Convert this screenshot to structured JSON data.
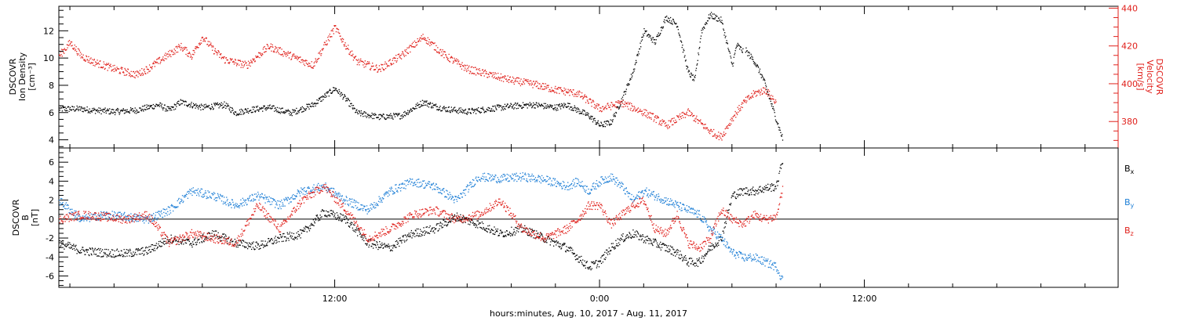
{
  "chart_data": [
    {
      "type": "scatter",
      "panel": "top",
      "x_units": "hours since 2017-08-10 00:00 UT",
      "xlim": [
        -0.5,
        47.5
      ],
      "x_ticks": [
        {
          "value": 12,
          "label": "12:00"
        },
        {
          "value": 24,
          "label": "0:00"
        },
        {
          "value": 36,
          "label": "12:00"
        }
      ],
      "xlabel": "hours:minutes, Aug. 10, 2017 - Aug. 11, 2017",
      "left_axis": {
        "label_lines": [
          "DSCOVR",
          "Ion Density",
          "[cm⁻³]"
        ],
        "ylim": [
          3.4,
          13.8
        ],
        "ticks": [
          4,
          6,
          8,
          10,
          12
        ],
        "color": "#000000"
      },
      "right_axis": {
        "label_lines": [
          "DSCOVR",
          "Velocity",
          "[km/s]"
        ],
        "ylim": [
          366,
          441
        ],
        "ticks": [
          380,
          400,
          420,
          440
        ],
        "color": "#e0201b"
      },
      "series": [
        {
          "axis": "left",
          "color": "#000000",
          "x": [
            -0.5,
            0.5,
            1.0,
            2.0,
            3.0,
            4.0,
            4.5,
            5.0,
            6.0,
            7.0,
            7.5,
            8.0,
            9.0,
            10.0,
            11.0,
            11.5,
            12.0,
            12.5,
            13.0,
            14.0,
            15.0,
            16.0,
            16.5,
            17.0,
            18.0,
            19.0,
            20.0,
            21.0,
            22.0,
            22.5,
            23.0,
            23.5,
            24.0,
            24.5,
            25.0,
            25.5,
            26.0,
            26.5,
            27.0,
            27.5,
            28.0,
            28.3,
            28.6,
            29.0,
            29.5,
            30.0,
            30.2,
            30.5
          ],
          "y": [
            6.3,
            6.3,
            6.2,
            6.1,
            6.2,
            6.6,
            6.2,
            6.8,
            6.4,
            6.6,
            6.0,
            6.2,
            6.4,
            6.0,
            6.6,
            7.2,
            7.8,
            7.0,
            6.0,
            5.7,
            5.8,
            6.8,
            6.5,
            6.3,
            6.1,
            6.3,
            6.5,
            6.6,
            6.4,
            6.6,
            6.2,
            5.8,
            5.1,
            5.3,
            7.0,
            9.0,
            12.0,
            11.2,
            13.0,
            12.5,
            9.0,
            8.4,
            12.0,
            13.2,
            12.8,
            9.5,
            11.0,
            10.5
          ]
        },
        {
          "axis": "left",
          "color": "#000000",
          "x": [
            30.6,
            31.0,
            31.4,
            31.8,
            32.0,
            32.3
          ],
          "y": [
            10.6,
            9.8,
            8.5,
            6.5,
            5.5,
            4.0
          ]
        },
        {
          "axis": "right",
          "color": "#e0201b",
          "x": [
            -0.5,
            0.0,
            0.5,
            1.0,
            2.0,
            3.0,
            3.5,
            4.0,
            5.0,
            5.5,
            6.0,
            6.5,
            7.0,
            8.0,
            9.0,
            10.0,
            11.0,
            12.0,
            12.5,
            13.0,
            14.0,
            15.0,
            16.0,
            17.0,
            18.0,
            19.0,
            20.0,
            21.0,
            22.0,
            23.0,
            24.0,
            25.0,
            26.0,
            26.5,
            27.0,
            28.0,
            29.0,
            29.5,
            30.0,
            30.5,
            31.0,
            31.5,
            32.0
          ],
          "y": [
            415,
            422,
            415,
            412,
            408,
            405,
            408,
            412,
            420,
            415,
            425,
            418,
            413,
            410,
            420,
            415,
            410,
            430,
            420,
            412,
            408,
            415,
            425,
            415,
            408,
            405,
            402,
            400,
            397,
            395,
            387,
            390,
            385,
            382,
            378,
            385,
            375,
            372,
            382,
            390,
            395,
            397,
            390
          ]
        }
      ]
    },
    {
      "type": "scatter",
      "panel": "bottom",
      "x_units": "hours since 2017-08-10 00:00 UT",
      "xlim": [
        -0.5,
        47.5
      ],
      "x_ticks": [
        {
          "value": 12,
          "label": "12:00"
        },
        {
          "value": 24,
          "label": "0:00"
        },
        {
          "value": 36,
          "label": "12:00"
        }
      ],
      "xlabel": "hours:minutes, Aug. 10, 2017 - Aug. 11, 2017",
      "left_axis": {
        "label_lines": [
          "DSCOVR",
          "B",
          "[nT]"
        ],
        "ylim": [
          -7.2,
          7.5
        ],
        "ticks": [
          -6,
          -4,
          -2,
          0,
          2,
          4,
          6
        ],
        "color": "#000000"
      },
      "zero_line": true,
      "series": [
        {
          "name": "Bx",
          "color": "#000000",
          "x": [
            -0.5,
            0.5,
            1.5,
            2.5,
            3.5,
            4.5,
            5.5,
            6.5,
            7.5,
            8.5,
            9.5,
            10.5,
            11.5,
            12.5,
            13.5,
            14.5,
            15.5,
            16.5,
            17.5,
            18.5,
            19.5,
            20.5,
            21.5,
            22.5,
            23.0,
            23.5,
            24.0,
            24.5,
            25.0,
            25.5,
            26.0,
            26.5,
            27.0,
            27.5,
            28.0,
            28.5,
            29.0,
            29.5,
            30.0,
            30.5,
            31.0,
            31.5,
            32.0,
            32.3
          ],
          "y": [
            -2.5,
            -3.3,
            -3.5,
            -3.6,
            -3.3,
            -2.0,
            -2.5,
            -1.5,
            -2.5,
            -2.8,
            -2.0,
            -1.5,
            0.8,
            0.0,
            -2.5,
            -3.0,
            -1.5,
            -1.0,
            0.3,
            -0.5,
            -1.5,
            -1.0,
            -2.0,
            -3.0,
            -4.0,
            -5.0,
            -4.5,
            -3.0,
            -2.0,
            -1.5,
            -2.0,
            -2.5,
            -3.0,
            -3.5,
            -4.5,
            -4.5,
            -3.0,
            -2.0,
            2.5,
            3.0,
            3.0,
            3.3,
            3.5,
            6.5
          ]
        },
        {
          "name": "By",
          "color": "#1e7fd6",
          "x": [
            -0.5,
            0.5,
            1.5,
            2.5,
            3.5,
            4.5,
            5.5,
            6.5,
            7.5,
            8.5,
            9.5,
            10.5,
            11.5,
            12.5,
            13.5,
            14.5,
            15.5,
            16.5,
            17.5,
            18.5,
            19.5,
            20.5,
            21.5,
            22.5,
            23.0,
            23.5,
            24.0,
            24.5,
            25.0,
            25.5,
            26.0,
            26.5,
            27.0,
            27.5,
            28.0,
            28.5,
            29.0,
            29.5,
            30.0,
            30.5,
            31.0,
            31.5,
            32.0,
            32.3
          ],
          "y": [
            2.0,
            0.0,
            0.5,
            0.3,
            0.0,
            1.0,
            3.0,
            2.5,
            1.5,
            2.5,
            1.5,
            3.0,
            3.5,
            2.0,
            1.0,
            3.0,
            4.0,
            3.5,
            2.0,
            4.5,
            4.3,
            4.5,
            4.2,
            3.5,
            4.0,
            3.0,
            4.0,
            4.5,
            3.5,
            2.0,
            3.0,
            2.5,
            2.0,
            1.5,
            1.0,
            0.5,
            -1.0,
            -2.0,
            -3.5,
            -4.0,
            -4.0,
            -4.5,
            -5.0,
            -6.5
          ]
        },
        {
          "name": "Bz",
          "color": "#e0201b",
          "x": [
            -0.5,
            0.5,
            1.5,
            2.5,
            3.5,
            4.5,
            5.5,
            6.5,
            7.5,
            8.5,
            9.5,
            10.5,
            11.5,
            12.5,
            13.5,
            14.5,
            15.5,
            16.5,
            17.5,
            18.5,
            19.5,
            20.5,
            21.5,
            22.5,
            23.0,
            23.5,
            24.0,
            24.5,
            25.0,
            25.5,
            26.0,
            26.5,
            27.0,
            27.5,
            28.0,
            28.5,
            29.0,
            29.5,
            30.0,
            30.5,
            31.0,
            31.5,
            32.0,
            32.3
          ],
          "y": [
            0.0,
            0.5,
            0.3,
            0.0,
            0.5,
            -2.5,
            -1.5,
            -2.0,
            -2.5,
            1.5,
            -1.0,
            2.0,
            3.5,
            1.0,
            -2.0,
            -1.0,
            0.5,
            1.0,
            0.0,
            0.5,
            2.0,
            -1.0,
            -2.0,
            -1.0,
            0.0,
            1.5,
            1.5,
            -0.5,
            0.5,
            1.5,
            2.0,
            -1.0,
            -1.5,
            0.5,
            -2.5,
            -3.0,
            -2.0,
            1.0,
            0.0,
            -0.5,
            0.5,
            0.0,
            0.3,
            3.5
          ]
        }
      ],
      "legend": [
        {
          "text": "B",
          "sub": "x",
          "color": "#000000"
        },
        {
          "text": "B",
          "sub": "y",
          "color": "#1e7fd6"
        },
        {
          "text": "B",
          "sub": "z",
          "color": "#e0201b"
        }
      ],
      "legend_placement": "right"
    }
  ]
}
